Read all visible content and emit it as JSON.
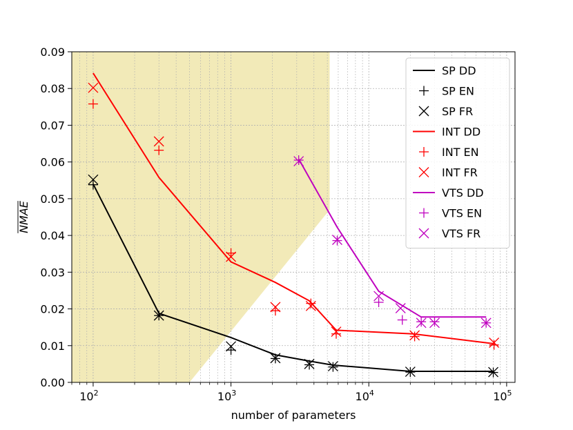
{
  "chart_data": {
    "type": "line",
    "title": "",
    "xlabel": "number of parameters",
    "ylabel": "NMAE",
    "ylabel_overlined": true,
    "xscale": "log",
    "xlim": [
      70,
      115000
    ],
    "ylim": [
      0,
      0.09
    ],
    "grid": true,
    "legend_position": "top-right",
    "x_ticks": [
      {
        "value": 100,
        "base": "10",
        "exp": "2"
      },
      {
        "value": 1000,
        "base": "10",
        "exp": "3"
      },
      {
        "value": 10000,
        "base": "10",
        "exp": "4"
      },
      {
        "value": 100000,
        "base": "10",
        "exp": "5"
      }
    ],
    "y_ticks": [
      "0.00",
      "0.01",
      "0.02",
      "0.03",
      "0.04",
      "0.05",
      "0.06",
      "0.07",
      "0.08",
      "0.09"
    ],
    "shaded_region": {
      "color": "#f2eab8",
      "polygon": [
        [
          70,
          0.09
        ],
        [
          5200,
          0.09
        ],
        [
          5200,
          0.047
        ],
        [
          500,
          0.0
        ],
        [
          70,
          0.0
        ]
      ]
    },
    "series": [
      {
        "name": "SP DD",
        "kind": "line",
        "color": "#000000",
        "points": [
          [
            100,
            0.054
          ],
          [
            300,
            0.0188
          ],
          [
            1000,
            0.0122
          ],
          [
            2100,
            0.0075
          ],
          [
            3700,
            0.0058
          ],
          [
            5500,
            0.0047
          ],
          [
            20000,
            0.003
          ],
          [
            80000,
            0.003
          ]
        ]
      },
      {
        "name": "SP EN",
        "kind": "plus",
        "color": "#000000",
        "points": [
          [
            100,
            0.0538
          ],
          [
            300,
            0.0182
          ],
          [
            1000,
            0.0088
          ],
          [
            2100,
            0.0065
          ],
          [
            3700,
            0.0048
          ],
          [
            5500,
            0.0042
          ],
          [
            20000,
            0.0028
          ],
          [
            80000,
            0.0027
          ]
        ]
      },
      {
        "name": "SP FR",
        "kind": "cross",
        "color": "#000000",
        "points": [
          [
            100,
            0.0552
          ],
          [
            300,
            0.0182
          ],
          [
            1000,
            0.0098
          ],
          [
            2100,
            0.0066
          ],
          [
            3700,
            0.005
          ],
          [
            5500,
            0.0044
          ],
          [
            20000,
            0.0029
          ],
          [
            80000,
            0.0028
          ]
        ]
      },
      {
        "name": "INT DD",
        "kind": "line",
        "color": "#ff0000",
        "points": [
          [
            100,
            0.0842
          ],
          [
            300,
            0.0558
          ],
          [
            1000,
            0.0328
          ],
          [
            2100,
            0.0272
          ],
          [
            3700,
            0.0222
          ],
          [
            5800,
            0.0142
          ],
          [
            21000,
            0.0132
          ],
          [
            82000,
            0.0105
          ]
        ]
      },
      {
        "name": "INT EN",
        "kind": "plus",
        "color": "#ff0000",
        "points": [
          [
            100,
            0.0758
          ],
          [
            300,
            0.0632
          ],
          [
            1000,
            0.0352
          ],
          [
            2100,
            0.0195
          ],
          [
            3800,
            0.0215
          ],
          [
            5800,
            0.0132
          ],
          [
            21500,
            0.0125
          ],
          [
            81000,
            0.0102
          ]
        ]
      },
      {
        "name": "INT FR",
        "kind": "cross",
        "color": "#ff0000",
        "points": [
          [
            100,
            0.0802
          ],
          [
            300,
            0.0656
          ],
          [
            1000,
            0.0342
          ],
          [
            2100,
            0.0205
          ],
          [
            3800,
            0.0208
          ],
          [
            5800,
            0.0138
          ],
          [
            21500,
            0.0128
          ],
          [
            81000,
            0.0108
          ]
        ]
      },
      {
        "name": "VTS DD",
        "kind": "line",
        "color": "#bf00bf",
        "points": [
          [
            3100,
            0.0608
          ],
          [
            5900,
            0.0422
          ],
          [
            11800,
            0.0248
          ],
          [
            17000,
            0.0212
          ],
          [
            24000,
            0.0178
          ],
          [
            30000,
            0.0178
          ],
          [
            71000,
            0.0178
          ]
        ]
      },
      {
        "name": "VTS EN",
        "kind": "plus",
        "color": "#bf00bf",
        "points": [
          [
            3100,
            0.0605
          ],
          [
            5900,
            0.0386
          ],
          [
            11800,
            0.0218
          ],
          [
            17500,
            0.017
          ],
          [
            24000,
            0.0165
          ],
          [
            30000,
            0.0165
          ],
          [
            71000,
            0.0162
          ]
        ]
      },
      {
        "name": "VTS FR",
        "kind": "cross",
        "color": "#bf00bf",
        "points": [
          [
            3100,
            0.0602
          ],
          [
            5900,
            0.0388
          ],
          [
            11800,
            0.0235
          ],
          [
            17000,
            0.0202
          ],
          [
            24000,
            0.0162
          ],
          [
            30000,
            0.0162
          ],
          [
            71000,
            0.0162
          ]
        ]
      }
    ]
  }
}
